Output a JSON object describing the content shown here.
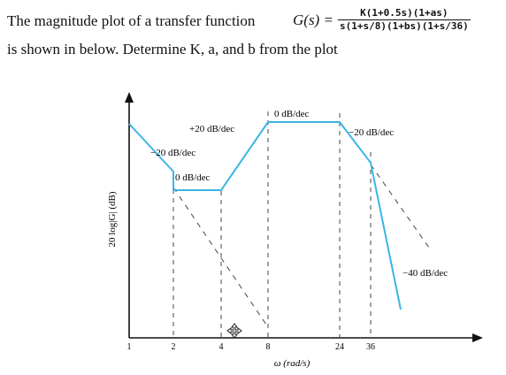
{
  "problem": {
    "line1_text": "The magnitude plot of a transfer function",
    "function_name": "G(s) =",
    "numerator": "K(1+0.5s)(1+as)",
    "denominator": "s(1+s/8)(1+bs)(1+s/36)",
    "line2_text": "is shown in below. Determine K, a, and b from the plot"
  },
  "diagram": {
    "y_axis_label": "20 log|G| (dB)",
    "x_axis_label": "ω (rad/s)",
    "x_ticks": [
      "1",
      "2",
      "4",
      "8",
      "24",
      "36"
    ],
    "slope_labels": {
      "first": "−20 dB/dec",
      "second": "0 dB/dec",
      "third": "+20 dB/dec",
      "fourth": "0 dB/dec",
      "fifth": "−20 dB/dec",
      "sixth": "−40 dB/dec"
    },
    "colors": {
      "curve": "#3bb5e6",
      "axis": "#111111",
      "dashed": "#444444"
    }
  }
}
